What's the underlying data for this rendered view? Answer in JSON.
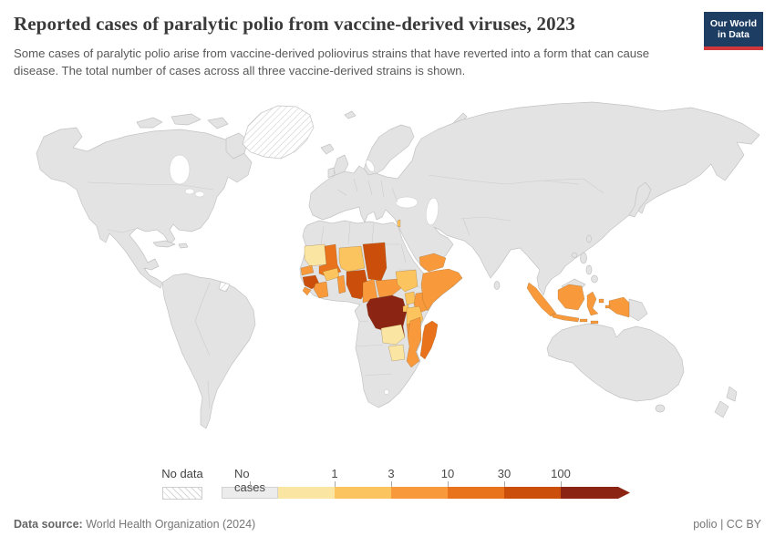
{
  "header": {
    "title": "Reported cases of paralytic polio from vaccine-derived viruses, 2023",
    "subtitle": "Some cases of paralytic polio arise from vaccine-derived poliovirus strains that have reverted into a form that can cause disease. The total number of cases across all three vaccine-derived strains is shown.",
    "logo": {
      "line1": "Our World",
      "line2": "in Data"
    }
  },
  "footer": {
    "source_label": "Data source:",
    "source_text": " World Health Organization (2024)",
    "right_text": "polio | CC BY"
  },
  "legend": {
    "no_data_label": "No data",
    "bins": [
      {
        "label": "No cases",
        "color": "#ececec"
      },
      {
        "label": "1",
        "color": "#fbe5a2"
      },
      {
        "label": "3",
        "color": "#fcc45e"
      },
      {
        "label": "10",
        "color": "#f89a3c"
      },
      {
        "label": "30",
        "color": "#e8731c"
      },
      {
        "label": "100",
        "color": "#cc4e0b"
      },
      {
        "label": "",
        "color": "#8b2412"
      }
    ]
  },
  "chart_data": {
    "type": "choropleth-map",
    "title": "Reported cases of paralytic polio from vaccine-derived viruses",
    "year": "2023",
    "unit": "reported cases",
    "legend_categories": [
      "No data",
      "No cases",
      "0-1",
      "1-3",
      "3-10",
      "10-30",
      "30-100",
      "100+"
    ],
    "bin_colors": {
      "No data": "url(#hatch)",
      "No cases": "#e3e3e3",
      "0-1": "#fbe5a2",
      "1-3": "#fcc45e",
      "3-10": "#f89a3c",
      "10-30": "#e8731c",
      "30-100": "#cc4e0b",
      "100+": "#8b2412"
    },
    "countries": [
      {
        "name": "Mauritania",
        "category": "0-1"
      },
      {
        "name": "Senegal",
        "category": "3-10"
      },
      {
        "name": "Guinea",
        "category": "30-100"
      },
      {
        "name": "Sierra Leone",
        "category": "3-10"
      },
      {
        "name": "Mali",
        "category": "10-30"
      },
      {
        "name": "Cote d'Ivoire",
        "category": "3-10"
      },
      {
        "name": "Burkina Faso",
        "category": "1-3"
      },
      {
        "name": "Benin",
        "category": "3-10"
      },
      {
        "name": "Niger",
        "category": "1-3"
      },
      {
        "name": "Nigeria",
        "category": "30-100"
      },
      {
        "name": "Chad",
        "category": "30-100"
      },
      {
        "name": "Cameroon",
        "category": "3-10"
      },
      {
        "name": "Central African Republic",
        "category": "3-10"
      },
      {
        "name": "South Sudan",
        "category": "1-3"
      },
      {
        "name": "Democratic Republic of Congo",
        "category": "100+"
      },
      {
        "name": "Uganda",
        "category": "1-3"
      },
      {
        "name": "Burundi",
        "category": "1-3"
      },
      {
        "name": "Kenya",
        "category": "3-10"
      },
      {
        "name": "Somalia",
        "category": "3-10"
      },
      {
        "name": "Tanzania",
        "category": "1-3"
      },
      {
        "name": "Zambia",
        "category": "0-1"
      },
      {
        "name": "Zimbabwe",
        "category": "0-1"
      },
      {
        "name": "Malawi",
        "category": "3-10"
      },
      {
        "name": "Mozambique",
        "category": "3-10"
      },
      {
        "name": "Madagascar",
        "category": "10-30"
      },
      {
        "name": "Yemen",
        "category": "3-10"
      },
      {
        "name": "Israel",
        "category": "1-3"
      },
      {
        "name": "Indonesia",
        "category": "3-10"
      },
      {
        "name": "Greenland",
        "category": "No data"
      },
      {
        "name": "French Guiana",
        "category": "No data"
      }
    ]
  }
}
